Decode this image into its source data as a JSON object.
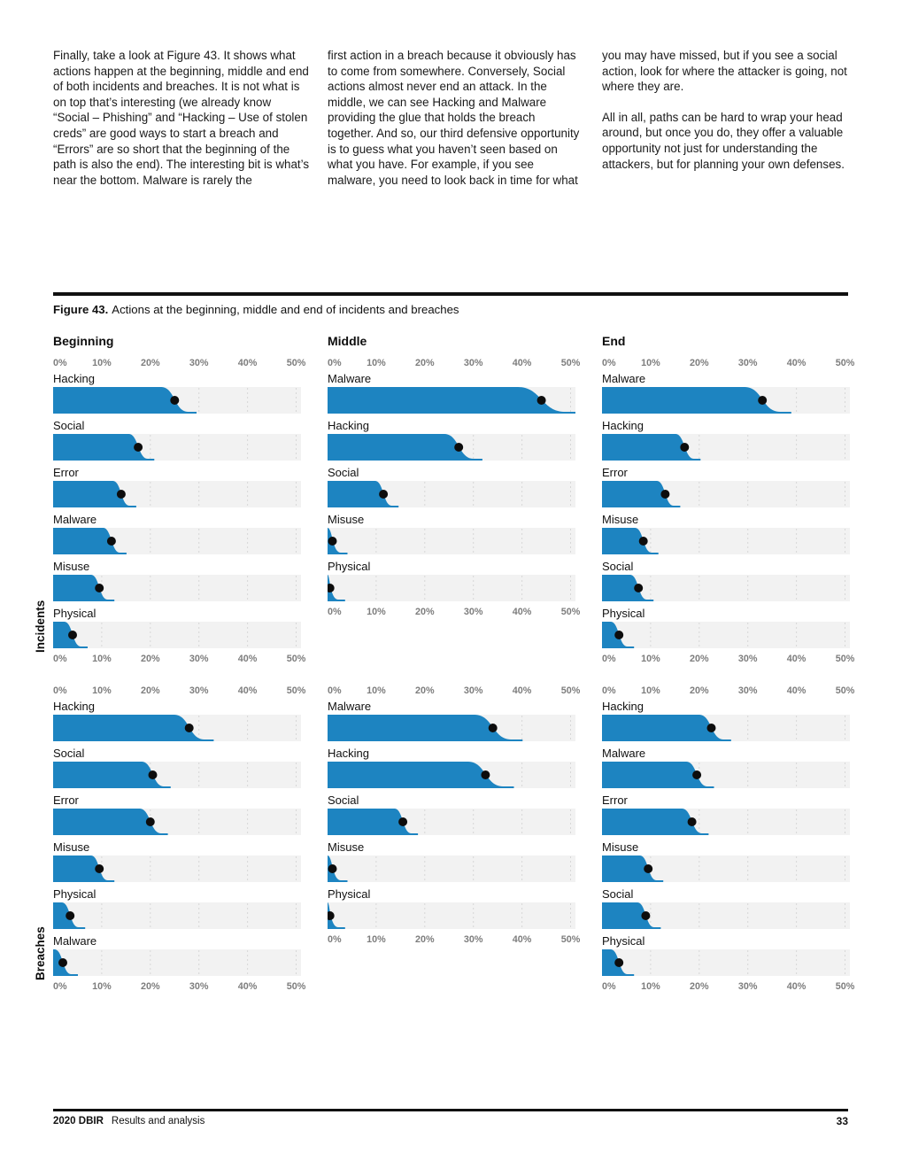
{
  "article": {
    "col1": "Finally, take a look at Figure 43. It shows what actions happen at the beginning, middle and end of both incidents and breaches. It is not what is on top that’s interesting (we already know “Social – Phishing” and “Hacking – Use of stolen creds” are good ways to start a breach and “Errors” are so short that the beginning of the path is also the end). The interesting bit is what’s near the bottom. Malware is rarely the",
    "col2": "first action in a breach because it obviously has to come from somewhere. Conversely, Social actions almost never end an attack. In the middle, we can see Hacking and Malware providing the glue that holds the breach together. And so, our third defensive opportunity is to guess what you haven’t seen based on what you have. For example, if you see malware, you need to look back in time for what",
    "col3_p1": "you may have missed, but if you see a social action, look for where the attacker is going, not where they are.",
    "col3_p2": "All in all, paths can be hard to wrap your head around, but once you do, they offer a valuable opportunity not just for understanding the attackers, but for planning your own defenses."
  },
  "figure": {
    "label": "Figure 43.",
    "text": "Actions at the beginning, middle and end of incidents and breaches"
  },
  "chart_data": {
    "type": "bar",
    "style": "slanted-area-with-dot",
    "unit": "%",
    "xlim": [
      0,
      51
    ],
    "grid": "dashed vertical at 10% steps",
    "axis_ticks": [
      "0%",
      "10%",
      "20%",
      "30%",
      "40%",
      "50%"
    ],
    "columns": [
      "Beginning",
      "Middle",
      "End"
    ],
    "rows": [
      "Incidents",
      "Breaches"
    ],
    "panels": [
      {
        "row": "Incidents",
        "column": "Beginning",
        "categories": [
          "Hacking",
          "Social",
          "Error",
          "Malware",
          "Misuse",
          "Physical"
        ],
        "values": [
          25,
          17.5,
          14,
          12,
          9.5,
          4
        ]
      },
      {
        "row": "Incidents",
        "column": "Middle",
        "categories": [
          "Malware",
          "Hacking",
          "Social",
          "Misuse",
          "Physical"
        ],
        "values": [
          44,
          27,
          11.5,
          1,
          0.5
        ]
      },
      {
        "row": "Incidents",
        "column": "End",
        "categories": [
          "Malware",
          "Hacking",
          "Error",
          "Misuse",
          "Social",
          "Physical"
        ],
        "values": [
          33,
          17,
          13,
          8.5,
          7.5,
          3.5
        ]
      },
      {
        "row": "Breaches",
        "column": "Beginning",
        "categories": [
          "Hacking",
          "Social",
          "Error",
          "Misuse",
          "Physical",
          "Malware"
        ],
        "values": [
          28,
          20.5,
          20,
          9.5,
          3.5,
          2
        ]
      },
      {
        "row": "Breaches",
        "column": "Middle",
        "categories": [
          "Malware",
          "Hacking",
          "Social",
          "Misuse",
          "Physical"
        ],
        "values": [
          34,
          32.5,
          15.5,
          1,
          0.5
        ]
      },
      {
        "row": "Breaches",
        "column": "End",
        "categories": [
          "Hacking",
          "Malware",
          "Error",
          "Misuse",
          "Social",
          "Physical"
        ],
        "values": [
          22.5,
          19.5,
          18.5,
          9.5,
          9,
          3.5
        ]
      }
    ],
    "colors": {
      "fill": "#1d84c1",
      "dot": "#0d0d0d",
      "track": "#f2f2f2",
      "grid": "#d7d7d7",
      "tick": "#7d7d7d"
    }
  },
  "footer": {
    "brand": "2020 DBIR",
    "section": "Results and analysis",
    "page": "33"
  }
}
